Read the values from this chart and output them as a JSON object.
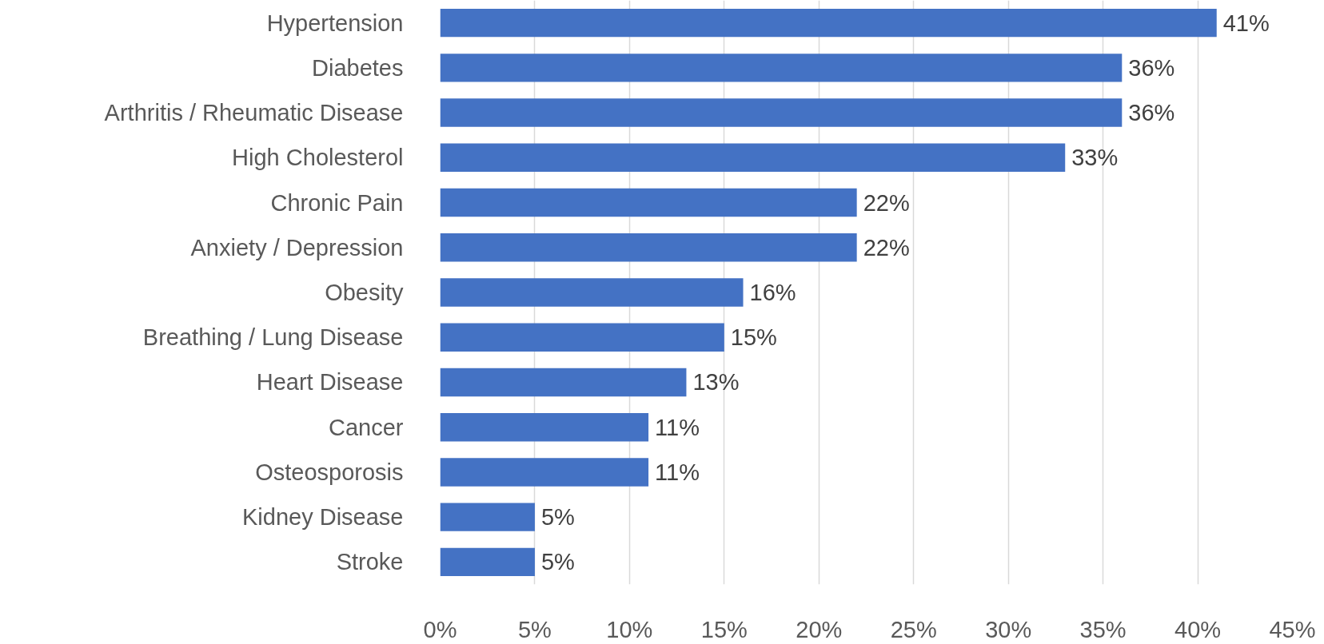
{
  "chart_data": {
    "type": "bar",
    "orientation": "horizontal",
    "categories": [
      "Hypertension",
      "Diabetes",
      "Arthritis / Rheumatic Disease",
      "High Cholesterol",
      "Chronic Pain",
      "Anxiety / Depression",
      "Obesity",
      "Breathing / Lung Disease",
      "Heart Disease",
      "Cancer",
      "Osteosporosis",
      "Kidney Disease",
      "Stroke"
    ],
    "values": [
      41,
      36,
      36,
      33,
      22,
      22,
      16,
      15,
      13,
      11,
      11,
      5,
      5
    ],
    "value_labels": [
      "41%",
      "36%",
      "36%",
      "33%",
      "22%",
      "22%",
      "16%",
      "15%",
      "13%",
      "11%",
      "11%",
      "5%",
      "5%"
    ],
    "color": "#4472c4",
    "xlim": [
      0,
      45
    ],
    "xticks": [
      {
        "value": 0,
        "label": "0%"
      },
      {
        "value": 5,
        "label": "5%"
      },
      {
        "value": 10,
        "label": "10%"
      },
      {
        "value": 15,
        "label": "15%"
      },
      {
        "value": 20,
        "label": "20%"
      },
      {
        "value": 25,
        "label": "25%"
      },
      {
        "value": 30,
        "label": "30%"
      },
      {
        "value": 35,
        "label": "35%"
      },
      {
        "value": 40,
        "label": "40%"
      },
      {
        "value": 45,
        "label": "45%"
      }
    ],
    "grid": "x"
  }
}
